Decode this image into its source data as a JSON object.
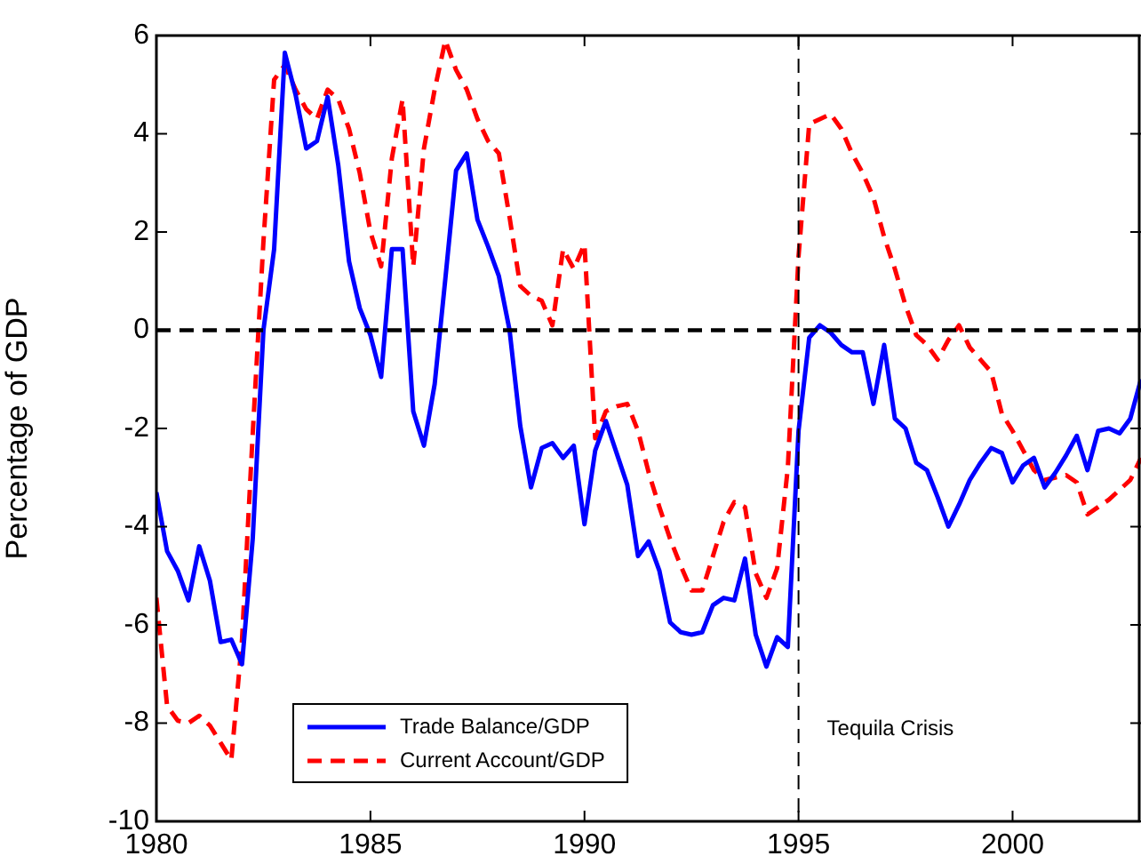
{
  "chart_data": {
    "type": "line",
    "ylabel": "Percentage of GDP",
    "x": [
      1980,
      1980.25,
      1980.5,
      1980.75,
      1981,
      1981.25,
      1981.5,
      1981.75,
      1982,
      1982.25,
      1982.5,
      1982.75,
      1983,
      1983.25,
      1983.5,
      1983.75,
      1984,
      1984.25,
      1984.5,
      1984.75,
      1985,
      1985.25,
      1985.5,
      1985.75,
      1986,
      1986.25,
      1986.5,
      1986.75,
      1987,
      1987.25,
      1987.5,
      1987.75,
      1988,
      1988.25,
      1988.5,
      1988.75,
      1989,
      1989.25,
      1989.5,
      1989.75,
      1990,
      1990.25,
      1990.5,
      1990.75,
      1991,
      1991.25,
      1991.5,
      1991.75,
      1992,
      1992.25,
      1992.5,
      1992.75,
      1993,
      1993.25,
      1993.5,
      1993.75,
      1994,
      1994.25,
      1994.5,
      1994.75,
      1995,
      1995.25,
      1995.5,
      1995.75,
      1996,
      1996.25,
      1996.5,
      1996.75,
      1997,
      1997.25,
      1997.5,
      1997.75,
      1998,
      1998.25,
      1998.5,
      1998.75,
      1999,
      1999.25,
      1999.5,
      1999.75,
      2000,
      2000.25,
      2000.5,
      2000.75,
      2001,
      2001.25,
      2001.5,
      2001.75,
      2002,
      2002.25,
      2002.5,
      2002.75,
      2003
    ],
    "series": [
      {
        "name": "Trade Balance/GDP",
        "color": "#0000ff",
        "line_style": "solid",
        "values": [
          -3.3,
          -4.5,
          -4.9,
          -5.5,
          -4.4,
          -5.1,
          -6.35,
          -6.3,
          -6.8,
          -4.25,
          0,
          1.65,
          5.65,
          4.8,
          3.7,
          3.85,
          4.75,
          3.35,
          1.4,
          0.45,
          -0.1,
          -0.95,
          1.65,
          1.65,
          -1.65,
          -2.35,
          -1.1,
          1.05,
          3.25,
          3.6,
          2.25,
          1.7,
          1.1,
          0,
          -1.95,
          -3.2,
          -2.4,
          -2.3,
          -2.6,
          -2.35,
          -3.95,
          -2.45,
          -1.85,
          -2.5,
          -3.15,
          -4.6,
          -4.3,
          -4.9,
          -5.95,
          -6.15,
          -6.2,
          -6.15,
          -5.6,
          -5.45,
          -5.5,
          -4.65,
          -6.2,
          -6.85,
          -6.25,
          -6.45,
          -2.05,
          -0.15,
          0.1,
          -0.05,
          -0.3,
          -0.45,
          -0.45,
          -1.5,
          -0.3,
          -1.8,
          -2.0,
          -2.7,
          -2.85,
          -3.4,
          -4.0,
          -3.55,
          -3.05,
          -2.7,
          -2.4,
          -2.5,
          -3.1,
          -2.75,
          -2.6,
          -3.2,
          -2.9,
          -2.55,
          -2.15,
          -2.85,
          -2.05,
          -2.0,
          -2.1,
          -1.8,
          -1.0
        ]
      },
      {
        "name": "Current Account/GDP",
        "color": "#ff0000",
        "line_style": "dashed",
        "values": [
          -5.45,
          -7.65,
          -7.95,
          -8.0,
          -7.85,
          -8.05,
          -8.4,
          -8.75,
          -6.3,
          -2.1,
          1.8,
          5.1,
          5.4,
          4.9,
          4.5,
          4.3,
          4.9,
          4.7,
          4.1,
          3.2,
          2.0,
          1.3,
          3.5,
          4.7,
          1.3,
          3.7,
          4.9,
          5.9,
          5.3,
          4.9,
          4.3,
          3.85,
          3.6,
          2.3,
          0.9,
          0.7,
          0.6,
          0.1,
          1.65,
          1.25,
          1.75,
          -2.2,
          -1.65,
          -1.55,
          -1.5,
          -2.05,
          -2.9,
          -3.6,
          -4.25,
          -4.8,
          -5.3,
          -5.3,
          -4.6,
          -3.9,
          -3.5,
          -3.6,
          -4.95,
          -5.45,
          -4.85,
          -2.8,
          1.5,
          4.2,
          4.3,
          4.4,
          4.1,
          3.6,
          3.2,
          2.7,
          1.9,
          1.25,
          0.5,
          -0.1,
          -0.3,
          -0.6,
          -0.2,
          0.1,
          -0.35,
          -0.6,
          -0.85,
          -1.7,
          -2.05,
          -2.45,
          -2.85,
          -3.05,
          -3.0,
          -2.95,
          -3.1,
          -3.75,
          -3.6,
          -3.45,
          -3.25,
          -3.05,
          -2.6
        ]
      }
    ],
    "xlim": [
      1980,
      2003
    ],
    "xticks": [
      1980,
      1985,
      1990,
      1995,
      2000
    ],
    "ylim": [
      -10,
      6
    ],
    "yticks": [
      -10,
      -8,
      -6,
      -4,
      -2,
      0,
      2,
      4,
      6
    ],
    "ref_lines": [
      {
        "axis": "y",
        "value": 0,
        "color": "#000000",
        "line_style": "dashed"
      },
      {
        "axis": "x",
        "value": 1995,
        "label": "Tequila Crisis",
        "color": "#000000",
        "line_style": "dashed"
      }
    ],
    "legend": "bottom left",
    "grid": false,
    "marker": "none"
  }
}
